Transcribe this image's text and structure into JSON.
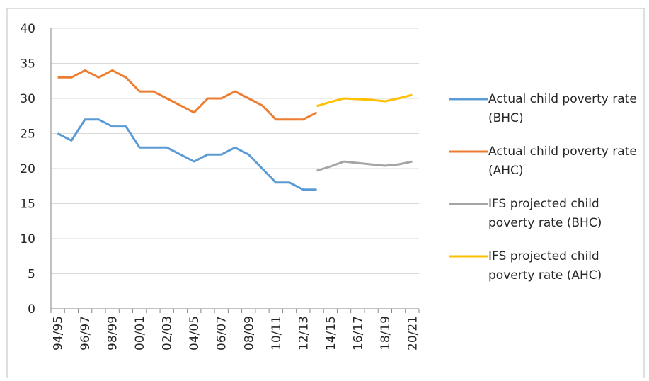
{
  "chart_data": {
    "type": "line",
    "categories": [
      "94/95",
      null,
      "96/97",
      null,
      "98/99",
      null,
      "00/01",
      null,
      "02/03",
      null,
      "04/05",
      null,
      "06/07",
      null,
      "08/09",
      null,
      "10/11",
      null,
      "12/13",
      null,
      "14/15",
      null,
      "16/17",
      null,
      "18/19",
      null,
      "20/21"
    ],
    "series": [
      {
        "name": "Actual child poverty rate (BHC)",
        "color": "#5b9bd5",
        "values": [
          25,
          24,
          27,
          27,
          26,
          26,
          23,
          23,
          23,
          22,
          21,
          22,
          22,
          23,
          22,
          20,
          18,
          18,
          17,
          17,
          null,
          null,
          null,
          null,
          null,
          null,
          null
        ]
      },
      {
        "name": "Actual child poverty rate (AHC)",
        "color": "#ed7d31",
        "values": [
          33,
          33,
          34,
          33,
          34,
          33,
          31,
          31,
          30,
          29,
          28,
          30,
          30,
          31,
          30,
          29,
          27,
          27,
          27,
          28,
          null,
          null,
          null,
          null,
          null,
          null,
          null
        ]
      },
      {
        "name": "IFS projected child poverty rate (BHC)",
        "color": "#a5a5a5",
        "values": [
          null,
          null,
          null,
          null,
          null,
          null,
          null,
          null,
          null,
          null,
          null,
          null,
          null,
          null,
          null,
          null,
          null,
          null,
          null,
          19.7,
          20.3,
          21,
          20.8,
          20.6,
          20.4,
          20.6,
          21
        ]
      },
      {
        "name": "IFS projected child poverty rate (AHC)",
        "color": "#ffc000",
        "values": [
          null,
          null,
          null,
          null,
          null,
          null,
          null,
          null,
          null,
          null,
          null,
          null,
          null,
          null,
          null,
          null,
          null,
          null,
          null,
          28.9,
          29.5,
          30,
          29.9,
          29.8,
          29.6,
          30,
          30.5
        ]
      }
    ],
    "ylim": [
      0,
      40
    ],
    "yticks": [
      0,
      5,
      10,
      15,
      20,
      25,
      30,
      35,
      40
    ],
    "grid": true,
    "legend": "right"
  }
}
